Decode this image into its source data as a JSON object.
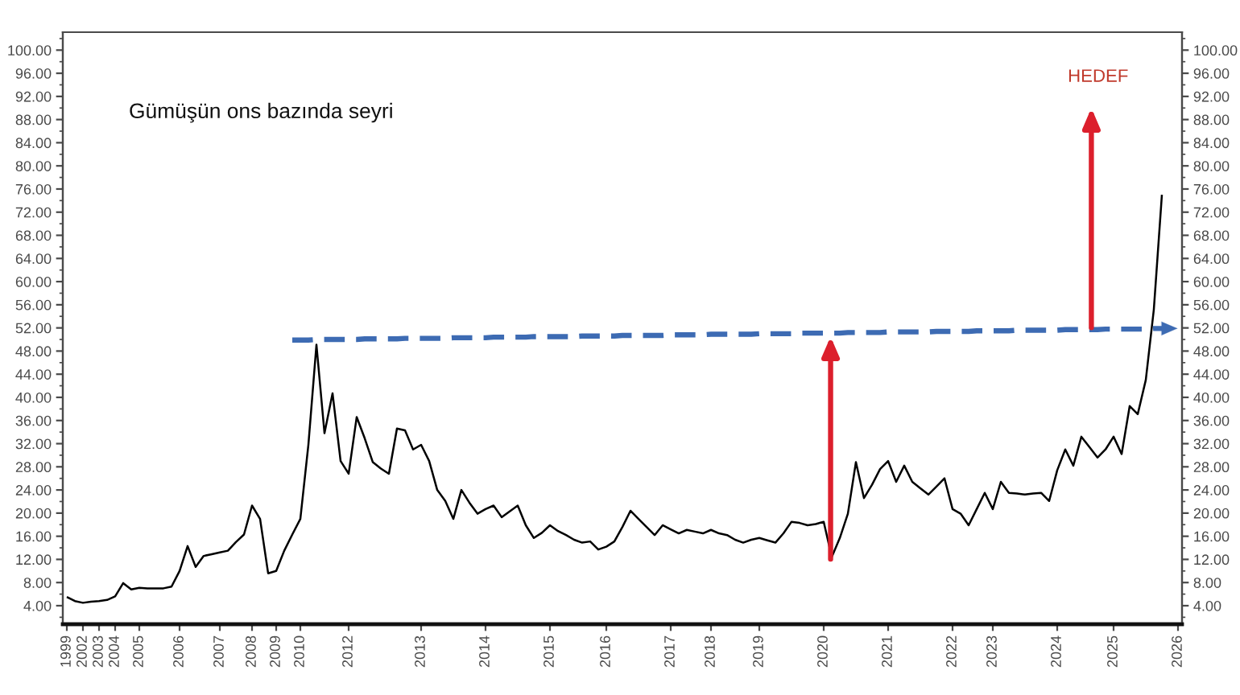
{
  "chart_data": {
    "type": "line",
    "title": "Gümüşün ons bazında seyri",
    "annotations": [
      "HEDEF"
    ],
    "categories": [
      "1999",
      null,
      "2002",
      null,
      "2003",
      null,
      "2004",
      null,
      null,
      "2005",
      null,
      null,
      null,
      null,
      "2006",
      null,
      null,
      null,
      null,
      "2007",
      null,
      null,
      null,
      "2008",
      null,
      null,
      "2009",
      null,
      null,
      "2010",
      null,
      null,
      null,
      null,
      null,
      "2012",
      null,
      null,
      null,
      null,
      null,
      null,
      null,
      null,
      "2013",
      null,
      null,
      null,
      null,
      null,
      null,
      null,
      "2014",
      null,
      null,
      null,
      null,
      null,
      null,
      null,
      "2015",
      null,
      null,
      null,
      null,
      null,
      null,
      "2016",
      null,
      null,
      null,
      null,
      null,
      null,
      null,
      "2017",
      null,
      null,
      null,
      null,
      "2018",
      null,
      null,
      null,
      null,
      null,
      "2019",
      null,
      null,
      null,
      null,
      null,
      null,
      null,
      "2020",
      null,
      null,
      null,
      null,
      null,
      null,
      null,
      "2021",
      null,
      null,
      null,
      null,
      null,
      null,
      null,
      "2022",
      null,
      null,
      null,
      null,
      "2023",
      null,
      null,
      null,
      null,
      null,
      null,
      null,
      "2024",
      null,
      null,
      null,
      null,
      null,
      null,
      "2025",
      null,
      null,
      null,
      null,
      null,
      null,
      null,
      "2026"
    ],
    "ylim": [
      0.8,
      103.1
    ],
    "yticks": [
      {
        "value": 2,
        "label": null
      },
      {
        "value": 4,
        "label": "4.00"
      },
      {
        "value": 6,
        "label": null
      },
      {
        "value": 8,
        "label": "8.00"
      },
      {
        "value": 10,
        "label": null
      },
      {
        "value": 12,
        "label": "12.00"
      },
      {
        "value": 14,
        "label": null
      },
      {
        "value": 16,
        "label": "16.00"
      },
      {
        "value": 18,
        "label": null
      },
      {
        "value": 20,
        "label": "20.00"
      },
      {
        "value": 22,
        "label": null
      },
      {
        "value": 24,
        "label": "24.00"
      },
      {
        "value": 26,
        "label": null
      },
      {
        "value": 28,
        "label": "28.00"
      },
      {
        "value": 30,
        "label": null
      },
      {
        "value": 32,
        "label": "32.00"
      },
      {
        "value": 34,
        "label": null
      },
      {
        "value": 36,
        "label": "36.00"
      },
      {
        "value": 38,
        "label": null
      },
      {
        "value": 40,
        "label": "40.00"
      },
      {
        "value": 42,
        "label": null
      },
      {
        "value": 44,
        "label": "44.00"
      },
      {
        "value": 46,
        "label": null
      },
      {
        "value": 48,
        "label": "48.00"
      },
      {
        "value": 50,
        "label": null
      },
      {
        "value": 52,
        "label": "52.00"
      },
      {
        "value": 54,
        "label": null
      },
      {
        "value": 56,
        "label": "56.00"
      },
      {
        "value": 58,
        "label": null
      },
      {
        "value": 60,
        "label": "60.00"
      },
      {
        "value": 62,
        "label": null
      },
      {
        "value": 64,
        "label": "64.00"
      },
      {
        "value": 66,
        "label": null
      },
      {
        "value": 68,
        "label": "68.00"
      },
      {
        "value": 70,
        "label": null
      },
      {
        "value": 72,
        "label": "72.00"
      },
      {
        "value": 74,
        "label": null
      },
      {
        "value": 76,
        "label": "76.00"
      },
      {
        "value": 78,
        "label": null
      },
      {
        "value": 80,
        "label": "80.00"
      },
      {
        "value": 82,
        "label": null
      },
      {
        "value": 84,
        "label": "84.00"
      },
      {
        "value": 86,
        "label": null
      },
      {
        "value": 88,
        "label": "88.00"
      },
      {
        "value": 90,
        "label": null
      },
      {
        "value": 92,
        "label": "92.00"
      },
      {
        "value": 94,
        "label": null
      },
      {
        "value": 96,
        "label": "96.00"
      },
      {
        "value": 98,
        "label": null
      },
      {
        "value": 100,
        "label": "100.00"
      },
      {
        "value": 102,
        "label": null
      }
    ],
    "y2lim": [
      0.8,
      103.1
    ],
    "y2ticks": [
      {
        "value": 2,
        "label": null
      },
      {
        "value": 4,
        "label": "4.00"
      },
      {
        "value": 6,
        "label": null
      },
      {
        "value": 8,
        "label": "8.00"
      },
      {
        "value": 10,
        "label": null
      },
      {
        "value": 12,
        "label": "12.00"
      },
      {
        "value": 14,
        "label": null
      },
      {
        "value": 16,
        "label": "16.00"
      },
      {
        "value": 18,
        "label": null
      },
      {
        "value": 20,
        "label": "20.00"
      },
      {
        "value": 22,
        "label": null
      },
      {
        "value": 24,
        "label": "24.00"
      },
      {
        "value": 26,
        "label": null
      },
      {
        "value": 28,
        "label": "28.00"
      },
      {
        "value": 30,
        "label": null
      },
      {
        "value": 32,
        "label": "32.00"
      },
      {
        "value": 34,
        "label": null
      },
      {
        "value": 36,
        "label": "36.00"
      },
      {
        "value": 38,
        "label": null
      },
      {
        "value": 40,
        "label": "40.00"
      },
      {
        "value": 42,
        "label": null
      },
      {
        "value": 44,
        "label": "44.00"
      },
      {
        "value": 46,
        "label": null
      },
      {
        "value": 48,
        "label": "48.00"
      },
      {
        "value": 50,
        "label": null
      },
      {
        "value": 52,
        "label": "52.00"
      },
      {
        "value": 54,
        "label": null
      },
      {
        "value": 56,
        "label": "56.00"
      },
      {
        "value": 58,
        "label": null
      },
      {
        "value": 60,
        "label": "60.00"
      },
      {
        "value": 62,
        "label": null
      },
      {
        "value": 64,
        "label": "64.00"
      },
      {
        "value": 66,
        "label": null
      },
      {
        "value": 68,
        "label": "68.00"
      },
      {
        "value": 70,
        "label": null
      },
      {
        "value": 72,
        "label": "72.00"
      },
      {
        "value": 74,
        "label": null
      },
      {
        "value": 76,
        "label": "76.00"
      },
      {
        "value": 78,
        "label": null
      },
      {
        "value": 80,
        "label": "80.00"
      },
      {
        "value": 82,
        "label": null
      },
      {
        "value": 84,
        "label": "84.00"
      },
      {
        "value": 86,
        "label": null
      },
      {
        "value": 88,
        "label": "88.00"
      },
      {
        "value": 90,
        "label": null
      },
      {
        "value": 92,
        "label": "92.00"
      },
      {
        "value": 94,
        "label": null
      },
      {
        "value": 96,
        "label": "96.00"
      },
      {
        "value": 98,
        "label": null
      },
      {
        "value": 100,
        "label": "100.00"
      },
      {
        "value": 102,
        "label": null
      }
    ],
    "series": [
      {
        "color": "#000000",
        "values": [
          5.5,
          4.8,
          4.5,
          4.7,
          4.8,
          5.0,
          5.6,
          7.9,
          6.8,
          7.1,
          7.0,
          7.0,
          7.0,
          7.3,
          10.0,
          14.3,
          10.7,
          12.6,
          12.9,
          13.2,
          13.5,
          15.0,
          16.3,
          21.3,
          19.0,
          9.6,
          10.0,
          13.5,
          16.3,
          19.0,
          31.8,
          49.1,
          33.8,
          40.7,
          29.0,
          26.8,
          36.6,
          32.9,
          28.8,
          27.7,
          26.8,
          34.6,
          34.3,
          31.0,
          31.8,
          29.0,
          24.0,
          22.1,
          19.0,
          24.0,
          21.8,
          19.9,
          20.7,
          21.3,
          19.3,
          20.3,
          21.3,
          17.9,
          15.7,
          16.6,
          17.9,
          16.9,
          16.2,
          15.4,
          14.9,
          15.1,
          13.7,
          14.2,
          15.1,
          17.6,
          20.4,
          19.0,
          17.6,
          16.2,
          17.9,
          17.2,
          16.5,
          17.1,
          16.8,
          16.5,
          17.1,
          16.5,
          16.2,
          15.4,
          14.9,
          15.4,
          15.7,
          15.3,
          14.9,
          16.5,
          18.5,
          18.3,
          17.9,
          18.1,
          18.5,
          12.4,
          15.7,
          19.9,
          28.8,
          22.6,
          24.9,
          27.6,
          29.0,
          25.4,
          28.2,
          25.4,
          24.3,
          23.2,
          24.6,
          26.0,
          20.7,
          19.9,
          17.9,
          20.7,
          23.5,
          20.7,
          25.4,
          23.5,
          23.4,
          23.2,
          23.4,
          23.5,
          22.1,
          27.4,
          31.0,
          28.2,
          33.2,
          31.4,
          29.6,
          31.0,
          33.2,
          30.2,
          38.5,
          37.1,
          43.0,
          55.2,
          75.0,
          null,
          null
        ]
      },
      {
        "color": "#3d6bb3",
        "line_style": "dashed",
        "values": [
          null,
          null,
          null,
          null,
          null,
          null,
          null,
          null,
          null,
          null,
          null,
          null,
          null,
          null,
          null,
          null,
          null,
          null,
          null,
          null,
          null,
          null,
          null,
          null,
          null,
          null,
          null,
          null,
          49.9,
          49.9,
          49.9,
          50.0,
          50.0,
          50.0,
          50.0,
          50.0,
          50.0,
          50.1,
          50.1,
          50.1,
          50.1,
          50.1,
          50.2,
          50.2,
          50.2,
          50.2,
          50.2,
          50.2,
          50.3,
          50.3,
          50.3,
          50.3,
          50.3,
          50.4,
          50.4,
          50.4,
          50.4,
          50.4,
          50.5,
          50.5,
          50.5,
          50.5,
          50.5,
          50.5,
          50.6,
          50.6,
          50.6,
          50.6,
          50.6,
          50.7,
          50.7,
          50.7,
          50.7,
          50.7,
          50.7,
          50.8,
          50.8,
          50.8,
          50.8,
          50.8,
          50.9,
          50.9,
          50.9,
          50.9,
          50.9,
          50.9,
          51.0,
          51.0,
          51.0,
          51.0,
          51.0,
          51.1,
          51.1,
          51.1,
          51.1,
          51.1,
          51.1,
          51.2,
          51.2,
          51.2,
          51.2,
          51.2,
          51.3,
          51.3,
          51.3,
          51.3,
          51.3,
          51.3,
          51.4,
          51.4,
          51.4,
          51.4,
          51.4,
          51.5,
          51.5,
          51.5,
          51.5,
          51.5,
          51.6,
          51.6,
          51.6,
          51.6,
          51.6,
          51.6,
          51.7,
          51.7,
          51.7,
          51.7,
          51.7,
          51.8,
          51.8,
          51.8,
          51.8,
          51.8,
          51.8,
          51.9,
          51.9,
          51.9,
          null
        ]
      }
    ]
  }
}
